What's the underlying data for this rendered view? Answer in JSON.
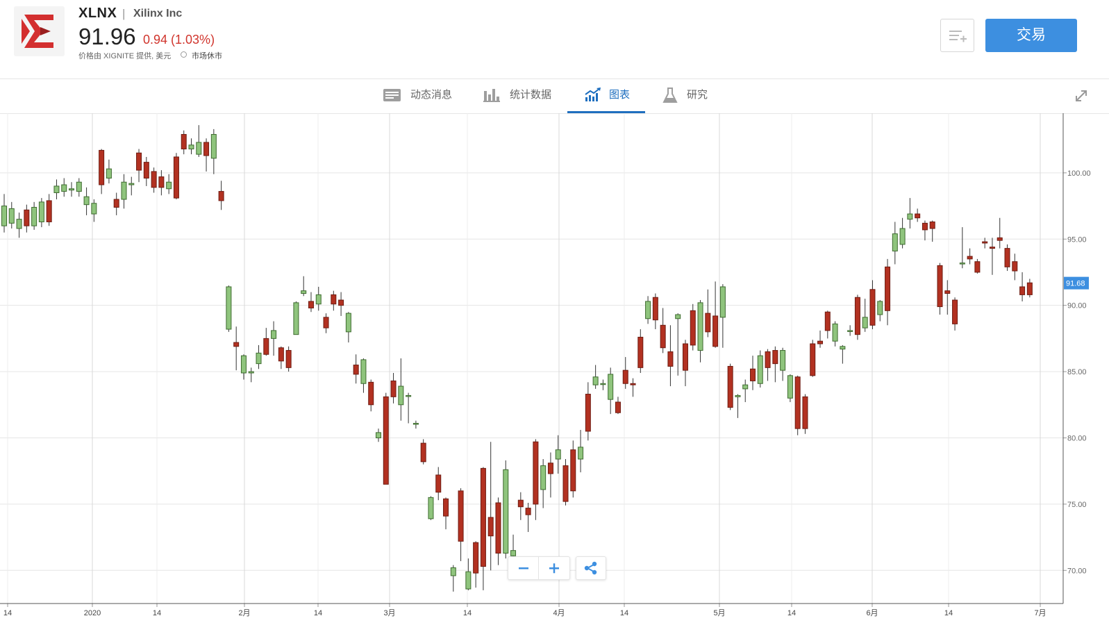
{
  "header": {
    "symbol": "XLNX",
    "separator": "|",
    "company_name": "Xilinx Inc",
    "price": "91.96",
    "change": "0.94 (1.03%)",
    "price_source": "价格由 XIGNITE 提供, 美元",
    "market_status": "市场休市",
    "trade_button": "交易",
    "colors": {
      "change_negative": "#d0342c",
      "trade_button": "#3d8fe0",
      "logo_red": "#d32f2f"
    }
  },
  "tabs": [
    {
      "label": "动态消息",
      "icon": "news-icon",
      "active": false
    },
    {
      "label": "统计数据",
      "icon": "bar-stats-icon",
      "active": false
    },
    {
      "label": "图表",
      "icon": "trend-chart-icon",
      "active": true
    },
    {
      "label": "研究",
      "icon": "flask-icon",
      "active": false
    }
  ],
  "controls": {
    "zoom_out": "−",
    "zoom_in": "+",
    "share": "share-icon",
    "expand": "expand-icon"
  },
  "chart_data": {
    "type": "candlestick",
    "y_range": [
      67.5,
      104.5
    ],
    "y_ticks": [
      "100.00",
      "95.00",
      "90.00",
      "85.00",
      "80.00",
      "75.00",
      "70.00"
    ],
    "x_ticks": [
      "14",
      "2020",
      "14",
      "2月",
      "14",
      "3月",
      "14",
      "4月",
      "14",
      "5月",
      "14",
      "6月",
      "14",
      "7月"
    ],
    "last_price_label": "91.68",
    "colors": {
      "up": "#8fc47d",
      "down": "#b23121",
      "up_border": "#3e6b2f",
      "down_border": "#6e1c12",
      "grid": "#e5e5e5",
      "last_label_bg": "#3d8fe0"
    },
    "candles": [
      [
        96,
        97.5,
        98.4,
        95.5
      ],
      [
        96.2,
        97.3,
        97.8,
        95.8
      ],
      [
        95.8,
        96.5,
        97,
        95.1
      ],
      [
        97.2,
        96,
        97.6,
        95.5
      ],
      [
        96,
        97.4,
        97.8,
        95.7
      ],
      [
        96.3,
        97.8,
        98.1,
        95.9
      ],
      [
        97.9,
        96.3,
        98.4,
        96
      ],
      [
        98.5,
        99,
        99.5,
        98
      ],
      [
        98.6,
        99.1,
        99.6,
        98.2
      ],
      [
        98.7,
        98.8,
        99.3,
        98.2
      ],
      [
        98.6,
        99.3,
        99.6,
        98.2
      ],
      [
        97.6,
        98.2,
        98.9,
        96.8
      ],
      [
        96.9,
        97.7,
        98,
        96.3
      ],
      [
        101.7,
        99.1,
        101.8,
        98.4
      ],
      [
        99.6,
        100.3,
        101,
        99.2
      ],
      [
        98,
        97.4,
        98.5,
        96.8
      ],
      [
        98,
        99.3,
        99.9,
        97.3
      ],
      [
        99.1,
        99.2,
        99.7,
        98.3
      ],
      [
        101.5,
        100.2,
        101.8,
        99.3
      ],
      [
        100.8,
        99.6,
        101.2,
        99
      ],
      [
        100.1,
        98.9,
        100.4,
        98.5
      ],
      [
        99.7,
        98.9,
        100.2,
        98.3
      ],
      [
        98.8,
        99.3,
        99.9,
        98.4
      ],
      [
        101.2,
        98.1,
        101.5,
        98
      ],
      [
        102.9,
        101.8,
        103.2,
        101.4
      ],
      [
        101.8,
        102.1,
        102.6,
        101.4
      ],
      [
        101.4,
        102.3,
        103.6,
        101.2
      ],
      [
        102.3,
        101.3,
        102.6,
        100.1
      ],
      [
        101.1,
        102.9,
        103.3,
        99.9
      ],
      [
        98.6,
        97.9,
        99.4,
        97.2
      ],
      [
        88.2,
        91.4,
        91.5,
        88
      ],
      [
        87.2,
        86.9,
        88.4,
        85.1
      ],
      [
        84.9,
        86.2,
        86.3,
        84.4
      ],
      [
        84.9,
        85,
        85.3,
        84.2
      ],
      [
        85.6,
        86.4,
        87,
        85.2
      ],
      [
        87.5,
        86.3,
        88.3,
        86.2
      ],
      [
        87.5,
        88.1,
        88.8,
        86.2
      ],
      [
        86.8,
        85.8,
        86.9,
        85.2
      ],
      [
        86.6,
        85.3,
        86.9,
        85
      ],
      [
        87.8,
        90.2,
        90.3,
        87.8
      ],
      [
        90.9,
        91.1,
        92.2,
        90.7
      ],
      [
        90.3,
        89.8,
        91,
        89.5
      ],
      [
        90.1,
        90.8,
        91.4,
        89.6
      ],
      [
        89.1,
        88.3,
        89.4,
        87.9
      ],
      [
        90.8,
        90.1,
        91.1,
        89.6
      ],
      [
        90.4,
        90,
        91,
        89.2
      ],
      [
        88,
        89.4,
        89.5,
        87.2
      ],
      [
        85.5,
        84.8,
        86.3,
        84.1
      ],
      [
        84.1,
        85.9,
        86,
        83.4
      ],
      [
        84.2,
        82.5,
        84.4,
        82
      ],
      [
        80,
        80.4,
        80.7,
        79.7
      ],
      [
        83.1,
        76.5,
        83.4,
        76.5
      ],
      [
        84.3,
        83.1,
        84.9,
        82.6
      ],
      [
        82.5,
        83.9,
        86,
        81.3
      ],
      [
        83.2,
        83.2,
        83.4,
        81.1
      ],
      [
        81.1,
        81.1,
        81.3,
        80.7
      ],
      [
        79.6,
        78.2,
        79.9,
        78
      ],
      [
        73.9,
        75.5,
        75.6,
        73.8
      ],
      [
        77.2,
        75.9,
        77.8,
        75.3
      ],
      [
        75.4,
        74.1,
        75.5,
        73.1
      ],
      [
        69.6,
        70.2,
        70.4,
        68.4
      ],
      [
        76,
        72.2,
        76.2,
        70.7
      ],
      [
        68.6,
        69.9,
        70.9,
        68.5
      ],
      [
        72.1,
        69.8,
        72.2,
        68.7
      ],
      [
        77.7,
        70.3,
        77.8,
        68.5
      ],
      [
        74,
        72.6,
        79.7,
        70
      ],
      [
        75.1,
        71.3,
        75.5,
        70.4
      ],
      [
        71.3,
        77.6,
        78.3,
        70.9
      ],
      [
        71.1,
        71.5,
        72.7,
        70.6
      ],
      [
        75.3,
        74.8,
        75.9,
        73.8
      ],
      [
        74.7,
        74.2,
        75.1,
        72.9
      ],
      [
        79.7,
        75,
        79.9,
        73.8
      ],
      [
        76.1,
        77.9,
        78.4,
        74.7
      ],
      [
        78.1,
        77.3,
        78.9,
        75.5
      ],
      [
        78.4,
        79.1,
        80.2,
        77.3
      ],
      [
        77.9,
        75.2,
        78.4,
        74.9
      ],
      [
        79.1,
        76,
        79.8,
        75.5
      ],
      [
        78.4,
        79.3,
        80.6,
        77.4
      ],
      [
        83.3,
        80.5,
        84.2,
        79.8
      ],
      [
        84,
        84.6,
        85.5,
        83.7
      ],
      [
        84.1,
        84.1,
        84.4,
        83.6
      ],
      [
        82.9,
        84.8,
        85.3,
        81.8
      ],
      [
        82.7,
        81.9,
        83.1,
        81.8
      ],
      [
        85.1,
        84.1,
        86.1,
        83.7
      ],
      [
        84.1,
        84,
        84.5,
        83.1
      ],
      [
        87.6,
        85.3,
        88.2,
        84.9
      ],
      [
        89,
        90.3,
        90.7,
        88.6
      ],
      [
        90.6,
        88.9,
        90.9,
        88.2
      ],
      [
        88.5,
        86.8,
        89.8,
        86.4
      ],
      [
        86.5,
        85.4,
        88.5,
        83.9
      ],
      [
        89,
        89.3,
        89.4,
        84.7
      ],
      [
        87.1,
        85.1,
        87.4,
        83.9
      ],
      [
        89.6,
        87,
        90.1,
        86.6
      ],
      [
        86.6,
        90.2,
        90.4,
        85.7
      ],
      [
        89.4,
        88,
        91.2,
        87.6
      ],
      [
        89.2,
        86.9,
        91.8,
        86.8
      ],
      [
        89.1,
        91.4,
        91.6,
        86.8
      ],
      [
        85.4,
        82.3,
        85.6,
        82.1
      ],
      [
        83.1,
        83.2,
        83.3,
        81.5
      ],
      [
        83.7,
        84,
        84.4,
        82.7
      ],
      [
        85.2,
        84.3,
        86.2,
        83.6
      ],
      [
        84.1,
        86.2,
        86.6,
        83.8
      ],
      [
        86.5,
        85.3,
        86.7,
        84.3
      ],
      [
        86.6,
        85.6,
        86.9,
        84.2
      ],
      [
        85.1,
        86.6,
        86.8,
        84.3
      ],
      [
        83,
        84.7,
        84.8,
        82.7
      ],
      [
        84.6,
        80.7,
        84.7,
        80.2
      ],
      [
        83.1,
        80.7,
        83.3,
        80.3
      ],
      [
        87.1,
        84.7,
        87.4,
        84.6
      ],
      [
        87.3,
        87.1,
        88.1,
        86.8
      ],
      [
        89.5,
        88.1,
        89.6,
        87.5
      ],
      [
        87.3,
        88.6,
        88.8,
        86.9
      ],
      [
        86.7,
        86.9,
        87,
        85.6
      ],
      [
        88.1,
        88.1,
        88.5,
        87.7
      ],
      [
        90.6,
        87.8,
        90.8,
        87.4
      ],
      [
        88.3,
        89.1,
        90.5,
        88
      ],
      [
        91.2,
        88.5,
        91.9,
        88.2
      ],
      [
        89.3,
        90.3,
        90.4,
        88.8
      ],
      [
        92.9,
        89.6,
        93.5,
        88.5
      ],
      [
        94.1,
        95.4,
        96.3,
        93.1
      ],
      [
        94.6,
        95.8,
        96.6,
        94.3
      ],
      [
        96.5,
        96.9,
        98.1,
        95.8
      ],
      [
        96.9,
        96.6,
        97.3,
        96.3
      ],
      [
        96.2,
        95.7,
        96.4,
        94.9
      ],
      [
        96.3,
        95.8,
        96.4,
        94.8
      ],
      [
        93,
        89.9,
        93.2,
        89.3
      ],
      [
        91.1,
        90.9,
        91.9,
        89.3
      ],
      [
        90.4,
        88.6,
        90.6,
        88.1
      ],
      [
        93.2,
        93.2,
        95.9,
        92.8
      ],
      [
        93.7,
        93.5,
        94.3,
        93.1
      ],
      [
        93.3,
        92.5,
        93.5,
        92.4
      ],
      [
        94.8,
        94.7,
        95.1,
        94.3
      ],
      [
        94.4,
        94.3,
        95.1,
        92.3
      ],
      [
        95.1,
        94.9,
        96.6,
        94.3
      ],
      [
        94.3,
        92.9,
        94.6,
        92.6
      ],
      [
        93.3,
        92.6,
        93.9,
        91.9
      ],
      [
        91.4,
        90.8,
        92.5,
        90.3
      ],
      [
        91.7,
        90.8,
        92,
        90.6
      ]
    ]
  }
}
